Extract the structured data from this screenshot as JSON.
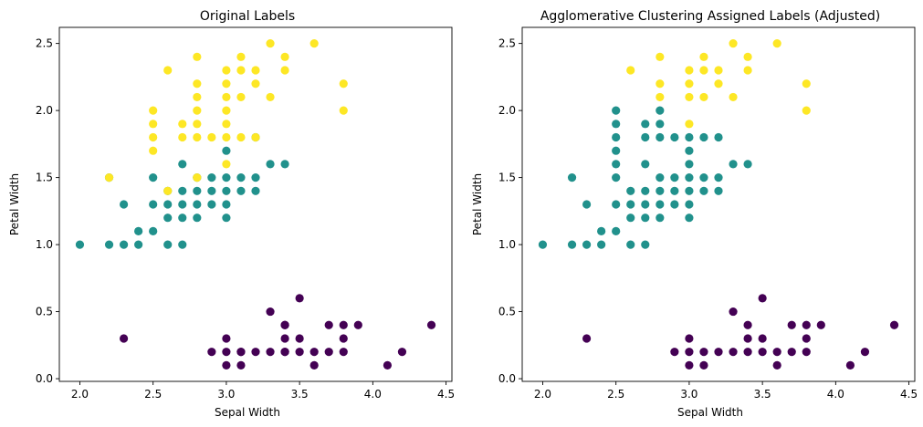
{
  "chart_data": [
    {
      "type": "scatter",
      "title": "Original Labels",
      "xlabel": "Sepal Width",
      "ylabel": "Petal Width",
      "xlim": [
        1.86,
        4.54
      ],
      "ylim": [
        -0.02,
        2.62
      ],
      "xticks": [
        "2.0",
        "2.5",
        "3.0",
        "3.5",
        "4.0",
        "4.5"
      ],
      "yticks": [
        "0.0",
        "0.5",
        "1.0",
        "1.5",
        "2.0",
        "2.5"
      ],
      "grid": false,
      "series": [
        {
          "color": "#440154",
          "points": [
            [
              3.0,
              0.1
            ],
            [
              3.1,
              0.1
            ],
            [
              3.6,
              0.1
            ],
            [
              4.1,
              0.1
            ],
            [
              2.9,
              0.2
            ],
            [
              3.0,
              0.2
            ],
            [
              3.1,
              0.2
            ],
            [
              3.2,
              0.2
            ],
            [
              3.3,
              0.2
            ],
            [
              3.4,
              0.2
            ],
            [
              3.5,
              0.2
            ],
            [
              3.6,
              0.2
            ],
            [
              3.7,
              0.2
            ],
            [
              3.8,
              0.2
            ],
            [
              4.2,
              0.2
            ],
            [
              2.3,
              0.3
            ],
            [
              3.0,
              0.3
            ],
            [
              3.4,
              0.3
            ],
            [
              3.5,
              0.3
            ],
            [
              3.8,
              0.3
            ],
            [
              3.4,
              0.4
            ],
            [
              3.7,
              0.4
            ],
            [
              3.8,
              0.4
            ],
            [
              3.9,
              0.4
            ],
            [
              4.4,
              0.4
            ],
            [
              3.3,
              0.5
            ],
            [
              3.5,
              0.6
            ],
            [
              3.4,
              0.4
            ],
            [
              3.4,
              0.2
            ],
            [
              3.1,
              0.2
            ]
          ]
        },
        {
          "color": "#21918c",
          "points": [
            [
              2.0,
              1.0
            ],
            [
              2.2,
              1.0
            ],
            [
              2.3,
              1.0
            ],
            [
              2.4,
              1.0
            ],
            [
              2.6,
              1.0
            ],
            [
              2.7,
              1.0
            ],
            [
              2.4,
              1.1
            ],
            [
              2.5,
              1.1
            ],
            [
              2.6,
              1.2
            ],
            [
              2.7,
              1.2
            ],
            [
              2.8,
              1.2
            ],
            [
              3.0,
              1.2
            ],
            [
              2.3,
              1.3
            ],
            [
              2.5,
              1.3
            ],
            [
              2.6,
              1.3
            ],
            [
              2.7,
              1.3
            ],
            [
              2.8,
              1.3
            ],
            [
              2.9,
              1.3
            ],
            [
              3.0,
              1.3
            ],
            [
              2.6,
              1.4
            ],
            [
              2.7,
              1.4
            ],
            [
              2.8,
              1.4
            ],
            [
              2.9,
              1.4
            ],
            [
              3.0,
              1.4
            ],
            [
              3.1,
              1.4
            ],
            [
              3.2,
              1.4
            ],
            [
              2.2,
              1.5
            ],
            [
              2.5,
              1.5
            ],
            [
              2.8,
              1.5
            ],
            [
              2.9,
              1.5
            ],
            [
              3.0,
              1.5
            ],
            [
              3.1,
              1.5
            ],
            [
              3.2,
              1.5
            ],
            [
              2.7,
              1.6
            ],
            [
              3.3,
              1.6
            ],
            [
              3.4,
              1.6
            ],
            [
              3.0,
              1.7
            ],
            [
              3.2,
              1.8
            ]
          ]
        },
        {
          "color": "#fde725",
          "points": [
            [
              2.6,
              1.4
            ],
            [
              2.2,
              1.5
            ],
            [
              2.8,
              1.5
            ],
            [
              3.0,
              1.6
            ],
            [
              2.5,
              1.7
            ],
            [
              2.5,
              1.8
            ],
            [
              2.7,
              1.8
            ],
            [
              2.8,
              1.8
            ],
            [
              2.9,
              1.8
            ],
            [
              3.0,
              1.8
            ],
            [
              3.1,
              1.8
            ],
            [
              3.2,
              1.8
            ],
            [
              2.5,
              1.9
            ],
            [
              2.7,
              1.9
            ],
            [
              2.8,
              1.9
            ],
            [
              3.0,
              1.9
            ],
            [
              2.5,
              2.0
            ],
            [
              2.8,
              2.0
            ],
            [
              3.0,
              2.0
            ],
            [
              3.8,
              2.0
            ],
            [
              2.8,
              2.1
            ],
            [
              3.0,
              2.1
            ],
            [
              3.1,
              2.1
            ],
            [
              3.3,
              2.1
            ],
            [
              2.8,
              2.2
            ],
            [
              3.0,
              2.2
            ],
            [
              3.2,
              2.2
            ],
            [
              3.8,
              2.2
            ],
            [
              2.6,
              2.3
            ],
            [
              3.0,
              2.3
            ],
            [
              3.1,
              2.3
            ],
            [
              3.2,
              2.3
            ],
            [
              3.4,
              2.3
            ],
            [
              2.8,
              2.4
            ],
            [
              3.1,
              2.4
            ],
            [
              3.4,
              2.4
            ],
            [
              3.3,
              2.5
            ],
            [
              3.6,
              2.5
            ]
          ]
        }
      ]
    },
    {
      "type": "scatter",
      "title": "Agglomerative Clustering Assigned Labels (Adjusted)",
      "xlabel": "Sepal Width",
      "ylabel": "Petal Width",
      "xlim": [
        1.86,
        4.54
      ],
      "ylim": [
        -0.02,
        2.62
      ],
      "xticks": [
        "2.0",
        "2.5",
        "3.0",
        "3.5",
        "4.0",
        "4.5"
      ],
      "yticks": [
        "0.0",
        "0.5",
        "1.0",
        "1.5",
        "2.0",
        "2.5"
      ],
      "grid": false,
      "series": [
        {
          "color": "#440154",
          "points": [
            [
              3.0,
              0.1
            ],
            [
              3.1,
              0.1
            ],
            [
              3.6,
              0.1
            ],
            [
              4.1,
              0.1
            ],
            [
              2.9,
              0.2
            ],
            [
              3.0,
              0.2
            ],
            [
              3.1,
              0.2
            ],
            [
              3.2,
              0.2
            ],
            [
              3.3,
              0.2
            ],
            [
              3.4,
              0.2
            ],
            [
              3.5,
              0.2
            ],
            [
              3.6,
              0.2
            ],
            [
              3.7,
              0.2
            ],
            [
              3.8,
              0.2
            ],
            [
              4.2,
              0.2
            ],
            [
              2.3,
              0.3
            ],
            [
              3.0,
              0.3
            ],
            [
              3.4,
              0.3
            ],
            [
              3.5,
              0.3
            ],
            [
              3.8,
              0.3
            ],
            [
              3.4,
              0.4
            ],
            [
              3.7,
              0.4
            ],
            [
              3.8,
              0.4
            ],
            [
              3.9,
              0.4
            ],
            [
              4.4,
              0.4
            ],
            [
              3.3,
              0.5
            ],
            [
              3.5,
              0.6
            ]
          ]
        },
        {
          "color": "#21918c",
          "points": [
            [
              2.0,
              1.0
            ],
            [
              2.2,
              1.0
            ],
            [
              2.3,
              1.0
            ],
            [
              2.4,
              1.0
            ],
            [
              2.6,
              1.0
            ],
            [
              2.7,
              1.0
            ],
            [
              2.4,
              1.1
            ],
            [
              2.5,
              1.1
            ],
            [
              2.6,
              1.2
            ],
            [
              2.7,
              1.2
            ],
            [
              2.8,
              1.2
            ],
            [
              3.0,
              1.2
            ],
            [
              2.3,
              1.3
            ],
            [
              2.5,
              1.3
            ],
            [
              2.6,
              1.3
            ],
            [
              2.7,
              1.3
            ],
            [
              2.8,
              1.3
            ],
            [
              2.9,
              1.3
            ],
            [
              3.0,
              1.3
            ],
            [
              2.6,
              1.4
            ],
            [
              2.7,
              1.4
            ],
            [
              2.8,
              1.4
            ],
            [
              2.9,
              1.4
            ],
            [
              3.0,
              1.4
            ],
            [
              3.1,
              1.4
            ],
            [
              3.2,
              1.4
            ],
            [
              2.2,
              1.5
            ],
            [
              2.5,
              1.5
            ],
            [
              2.8,
              1.5
            ],
            [
              2.9,
              1.5
            ],
            [
              3.0,
              1.5
            ],
            [
              3.1,
              1.5
            ],
            [
              3.2,
              1.5
            ],
            [
              2.5,
              1.6
            ],
            [
              2.7,
              1.6
            ],
            [
              3.0,
              1.6
            ],
            [
              3.3,
              1.6
            ],
            [
              3.4,
              1.6
            ],
            [
              2.5,
              1.7
            ],
            [
              3.0,
              1.7
            ],
            [
              2.5,
              1.8
            ],
            [
              2.7,
              1.8
            ],
            [
              2.8,
              1.8
            ],
            [
              2.9,
              1.8
            ],
            [
              3.0,
              1.8
            ],
            [
              3.1,
              1.8
            ],
            [
              3.2,
              1.8
            ],
            [
              2.5,
              1.9
            ],
            [
              2.7,
              1.9
            ],
            [
              2.8,
              1.9
            ],
            [
              2.5,
              2.0
            ],
            [
              2.8,
              2.0
            ]
          ]
        },
        {
          "color": "#fde725",
          "points": [
            [
              3.0,
              1.9
            ],
            [
              3.8,
              2.0
            ],
            [
              2.8,
              2.1
            ],
            [
              3.0,
              2.1
            ],
            [
              3.1,
              2.1
            ],
            [
              3.3,
              2.1
            ],
            [
              2.8,
              2.2
            ],
            [
              3.0,
              2.2
            ],
            [
              3.2,
              2.2
            ],
            [
              3.8,
              2.2
            ],
            [
              2.6,
              2.3
            ],
            [
              3.0,
              2.3
            ],
            [
              3.1,
              2.3
            ],
            [
              3.2,
              2.3
            ],
            [
              3.4,
              2.3
            ],
            [
              2.8,
              2.4
            ],
            [
              3.1,
              2.4
            ],
            [
              3.4,
              2.4
            ],
            [
              3.3,
              2.5
            ],
            [
              3.6,
              2.5
            ]
          ]
        }
      ]
    }
  ]
}
